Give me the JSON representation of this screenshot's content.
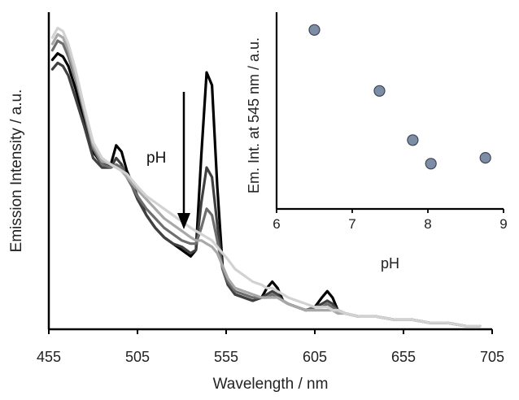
{
  "chart_data": [
    {
      "type": "line",
      "title": "",
      "xlabel": "Wavelength / nm",
      "ylabel": "Emission Intensity / a.u.",
      "xlim": [
        455,
        705
      ],
      "ylim": [
        0,
        100
      ],
      "xticks": [
        455,
        505,
        555,
        605,
        655,
        705
      ],
      "x": [
        457,
        460,
        463,
        466,
        470,
        475,
        480,
        485,
        490,
        493,
        496,
        499,
        502,
        505,
        510,
        515,
        520,
        525,
        530,
        535,
        538,
        541,
        544,
        547,
        550,
        553,
        556,
        560,
        565,
        570,
        575,
        578,
        581,
        584,
        587,
        590,
        595,
        600,
        605,
        609,
        612,
        615,
        618,
        622,
        630,
        640,
        650,
        660,
        670,
        680,
        690,
        698
      ],
      "series": [
        {
          "color": "#000000",
          "values": [
            85,
            87,
            86,
            83,
            76,
            66,
            56,
            52,
            52,
            58,
            56,
            50,
            46,
            42,
            36,
            32,
            29,
            27,
            25,
            23,
            25,
            55,
            81,
            77,
            45,
            20,
            14,
            11,
            10,
            9,
            10,
            13,
            15,
            13,
            9,
            8,
            7,
            6,
            7,
            10,
            12,
            10,
            6,
            5,
            4,
            4,
            3,
            3,
            2,
            2,
            1,
            1
          ]
        },
        {
          "color": "#404040",
          "values": [
            82,
            84,
            83,
            80,
            73,
            64,
            54,
            51,
            51,
            54,
            52,
            48,
            45,
            41,
            36,
            32,
            29,
            27,
            26,
            24,
            25,
            40,
            51,
            48,
            33,
            19,
            14,
            11,
            10,
            9,
            10,
            11,
            12,
            11,
            9,
            8,
            7,
            6,
            7,
            8,
            9,
            8,
            6,
            5,
            4,
            4,
            3,
            3,
            2,
            2,
            1,
            1
          ]
        },
        {
          "color": "#6e6e6e",
          "values": [
            88,
            91,
            90,
            86,
            79,
            68,
            57,
            52,
            51,
            52,
            51,
            48,
            45,
            42,
            38,
            35,
            32,
            30,
            28,
            27,
            27,
            32,
            38,
            36,
            28,
            19,
            15,
            12,
            11,
            10,
            10,
            10,
            11,
            10,
            9,
            8,
            7,
            6,
            7,
            7,
            8,
            7,
            6,
            5,
            4,
            4,
            3,
            3,
            2,
            2,
            1,
            1
          ]
        },
        {
          "color": "#a8a8a8",
          "values": [
            90,
            93,
            92,
            88,
            80,
            69,
            58,
            53,
            52,
            51,
            50,
            48,
            46,
            44,
            41,
            38,
            35,
            33,
            31,
            29,
            28,
            28,
            27,
            26,
            24,
            20,
            16,
            13,
            12,
            11,
            10,
            10,
            10,
            10,
            9,
            8,
            7,
            6,
            6,
            6,
            6,
            6,
            5,
            5,
            4,
            4,
            3,
            3,
            2,
            2,
            1,
            1
          ]
        },
        {
          "color": "#d2d2d2",
          "values": [
            92,
            95,
            94,
            90,
            82,
            70,
            59,
            54,
            52,
            51,
            50,
            49,
            47,
            45,
            42,
            40,
            38,
            36,
            34,
            32,
            31,
            30,
            29,
            28,
            26,
            24,
            22,
            19,
            17,
            15,
            14,
            13,
            13,
            12,
            11,
            10,
            9,
            8,
            7,
            7,
            7,
            6,
            6,
            5,
            4,
            4,
            3,
            3,
            2,
            2,
            1,
            1
          ]
        }
      ],
      "annotation": {
        "text": "pH",
        "arrow": "down"
      }
    },
    {
      "type": "scatter",
      "title": "",
      "xlabel": "pH",
      "ylabel": "Em. Int. at 545 nm / a.u.",
      "xlim": [
        6,
        9
      ],
      "ylim": [
        0,
        100
      ],
      "xticks": [
        6,
        7,
        8,
        9
      ],
      "x": [
        6.5,
        7.36,
        7.8,
        8.04,
        8.76
      ],
      "y": [
        91,
        60,
        35,
        23,
        26
      ],
      "marker_fill": "#7e8da6",
      "marker_edge": "#3d4656"
    }
  ]
}
